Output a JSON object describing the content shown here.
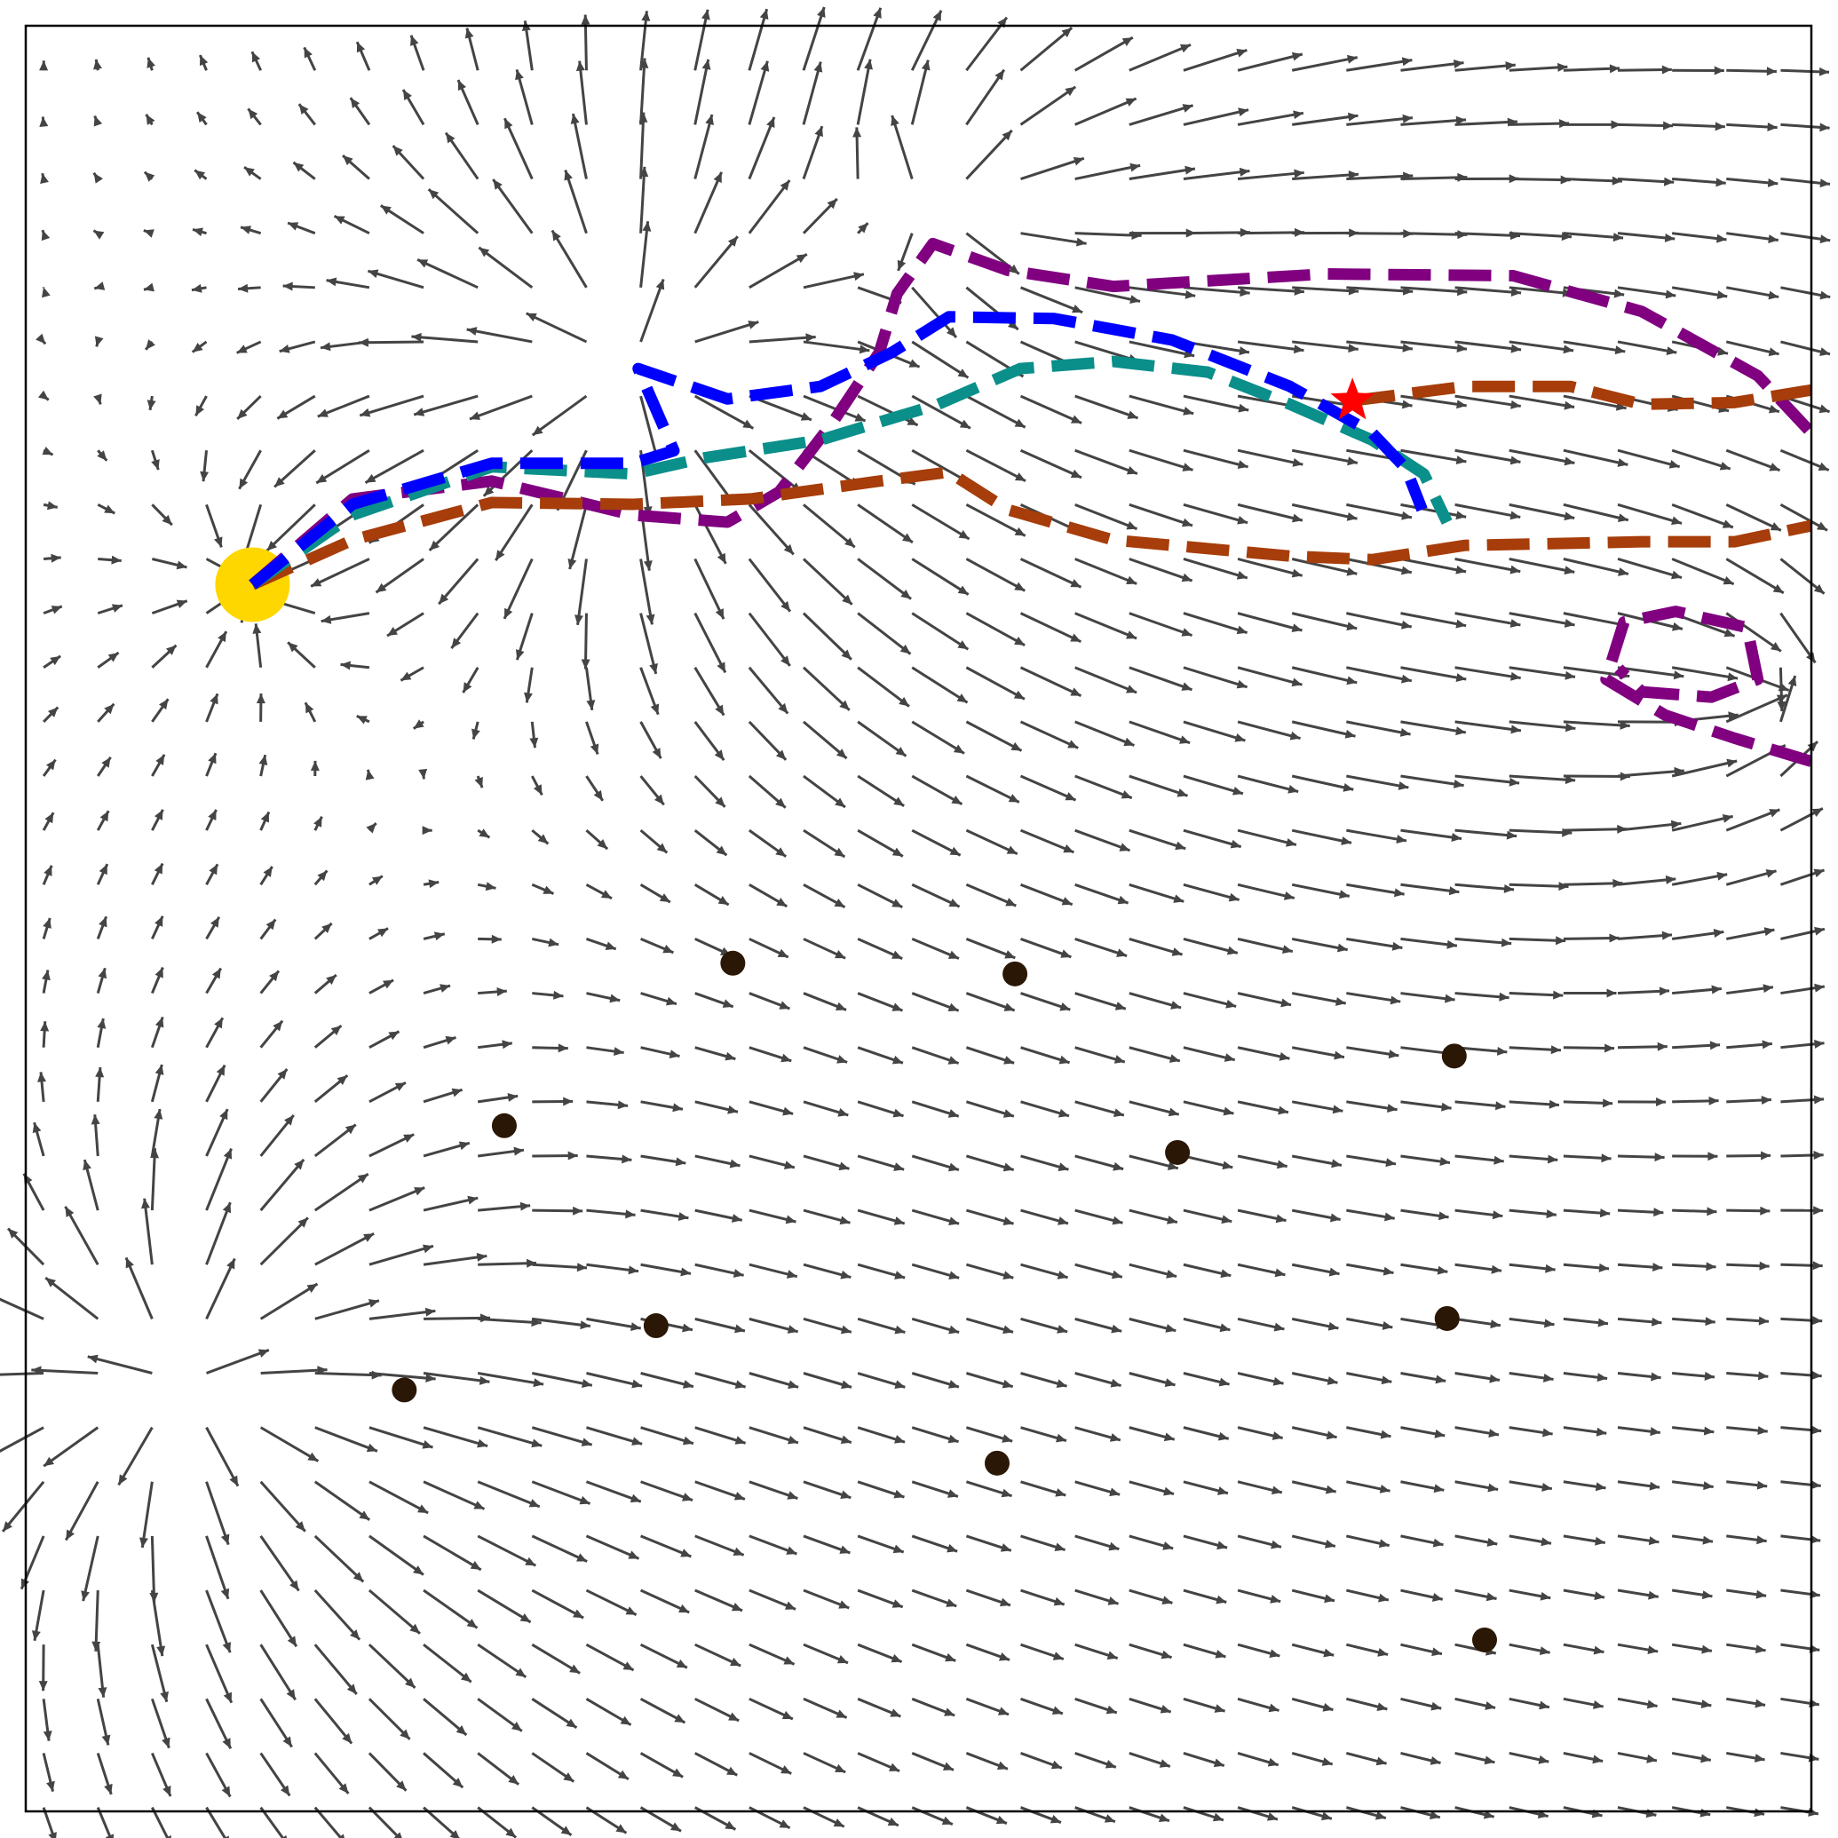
{
  "chart_data": {
    "type": "trajectory",
    "xlim": [
      0,
      100
    ],
    "ylim": [
      0,
      100
    ],
    "start": {
      "x": 12.7,
      "y": 68.7,
      "color": "#ffd700"
    },
    "goal": {
      "x": 74.3,
      "y": 79.0,
      "color": "#ff0000"
    },
    "obstacles": {
      "color": "#2b1705",
      "x": [
        39.6,
        55.4,
        80.0,
        26.8,
        64.5,
        35.3,
        79.6,
        21.2,
        54.4,
        81.7
      ],
      "y": [
        47.5,
        46.9,
        42.3,
        38.4,
        36.9,
        27.2,
        27.6,
        23.6,
        19.5,
        9.6
      ]
    },
    "series": [
      {
        "color": "#800080",
        "x": [
          12.7,
          18.3,
          26.1,
          34.0,
          39.3,
          42.2,
          45.2,
          47.8,
          48.8,
          50.8,
          55.0,
          60.9,
          72.8,
          83.3,
          90.5,
          97.0,
          100,
          null,
          100,
          95.7,
          91.8,
          88.5,
          89.5,
          92.4,
          96.4,
          97.0,
          94.4,
          90.5,
          89.2
        ],
        "y": [
          68.7,
          73.5,
          74.5,
          72.6,
          72.2,
          73.9,
          77.8,
          81.7,
          85.0,
          87.8,
          86.3,
          85.4,
          86.1,
          86.0,
          84.0,
          80.4,
          77.2,
          null,
          58.8,
          60.1,
          61.4,
          63.4,
          66.6,
          67.2,
          66.3,
          63.4,
          62.4,
          62.7,
          64.0
        ]
      },
      {
        "color": "#a63d0a",
        "x": [
          12.7,
          18.3,
          26.1,
          34.0,
          40.6,
          47.8,
          51.7,
          55.0,
          60.9,
          70.8,
          75.4,
          80.6,
          90.5,
          95.7,
          100,
          null,
          74.3,
          80.6,
          86.5,
          90.5,
          95.7,
          100
        ],
        "y": [
          68.7,
          71.2,
          73.3,
          73.2,
          73.5,
          74.5,
          75.0,
          72.9,
          71.2,
          70.3,
          70.1,
          70.9,
          71.1,
          71.1,
          72.0,
          null,
          79.0,
          79.8,
          79.8,
          78.8,
          78.9,
          79.6
        ]
      },
      {
        "color": "#0a8f8a",
        "x": [
          12.7,
          18.3,
          26.1,
          34.0,
          38.0,
          44.5,
          51.1,
          55.7,
          60.9,
          66.2,
          70.8,
          75.4,
          78.3,
          79.6
        ],
        "y": [
          68.7,
          72.6,
          75.3,
          74.9,
          75.8,
          76.8,
          78.8,
          80.8,
          81.2,
          80.6,
          78.8,
          76.8,
          74.9,
          72.2
        ]
      },
      {
        "color": "#0000ff",
        "x": [
          12.7,
          18.3,
          26.1,
          34.0,
          36.3,
          34.3,
          39.3,
          44.5,
          48.5,
          51.7,
          57.6,
          64.2,
          70.8,
          75.4,
          77.3,
          78.2
        ],
        "y": [
          68.7,
          73.2,
          75.5,
          75.5,
          76.2,
          80.8,
          79.1,
          79.8,
          81.7,
          83.7,
          83.6,
          82.4,
          79.8,
          77.2,
          75.2,
          72.9
        ]
      }
    ]
  }
}
